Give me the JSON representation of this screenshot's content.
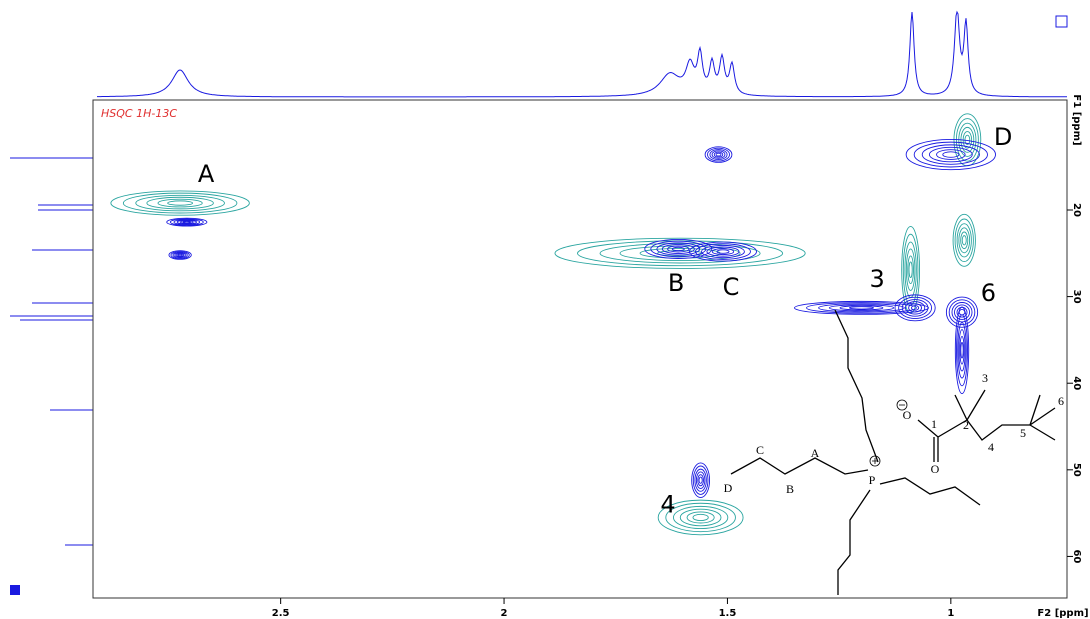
{
  "chart_data": {
    "type": "hsqc",
    "title": "HSQC 1H-13C",
    "x_label": "F2 [ppm]",
    "y_label": "F1 [ppm]",
    "xlim": [
      2.92,
      0.74
    ],
    "ylim": [
      7.3,
      64.8
    ],
    "xticks": [
      2.5,
      2.0,
      1.5,
      1.0
    ],
    "yticks": [
      20,
      30,
      40,
      50,
      60
    ],
    "colors": {
      "positive": "#2aa5a0",
      "negative": "#1a1ae0"
    },
    "peaks": [
      {
        "sign": "positive",
        "x": 2.725,
        "y": 19.2,
        "x_width": 0.31,
        "y_width": 2.8
      },
      {
        "sign": "negative",
        "x": 2.71,
        "y": 21.4,
        "x_width": 0.09,
        "y_width": 0.9
      },
      {
        "sign": "negative",
        "x": 2.725,
        "y": 25.2,
        "x_width": 0.05,
        "y_width": 1
      },
      {
        "sign": "positive",
        "x": 1.606,
        "y": 25.0,
        "x_width": 0.56,
        "y_width": 3.5
      },
      {
        "sign": "negative",
        "x": 1.61,
        "y": 24.5,
        "x_width": 0.15,
        "y_width": 2.2
      },
      {
        "sign": "negative",
        "x": 1.51,
        "y": 24.8,
        "x_width": 0.15,
        "y_width": 2.2
      },
      {
        "sign": "negative",
        "x": 1.52,
        "y": 13.6,
        "x_width": 0.06,
        "y_width": 1.8
      },
      {
        "sign": "positive",
        "x": 0.963,
        "y": 11.9,
        "x_width": 0.06,
        "y_width": 6
      },
      {
        "sign": "negative",
        "x": 1.0,
        "y": 13.6,
        "x_width": 0.2,
        "y_width": 3.5
      },
      {
        "sign": "positive",
        "x": 1.09,
        "y": 26.9,
        "x_width": 0.04,
        "y_width": 10
      },
      {
        "sign": "negative",
        "x": 1.2,
        "y": 31.3,
        "x_width": 0.3,
        "y_width": 1.5
      },
      {
        "sign": "negative",
        "x": 1.08,
        "y": 31.3,
        "x_width": 0.09,
        "y_width": 3
      },
      {
        "sign": "positive",
        "x": 0.97,
        "y": 23.5,
        "x_width": 0.05,
        "y_width": 6
      },
      {
        "sign": "negative",
        "x": 0.975,
        "y": 36.2,
        "x_width": 0.03,
        "y_width": 10
      },
      {
        "sign": "negative",
        "x": 0.975,
        "y": 31.8,
        "x_width": 0.07,
        "y_width": 3.5
      },
      {
        "sign": "negative",
        "x": 1.56,
        "y": 51.2,
        "x_width": 0.04,
        "y_width": 4
      },
      {
        "sign": "positive",
        "x": 1.56,
        "y": 55.5,
        "x_width": 0.19,
        "y_width": 4
      }
    ],
    "annotations": [
      {
        "text": "A",
        "x": 2.667,
        "y": 15.96
      },
      {
        "text": "B",
        "x": 1.615,
        "y": 28.55
      },
      {
        "text": "C",
        "x": 1.492,
        "y": 29.0
      },
      {
        "text": "D",
        "x": 0.883,
        "y": 11.7
      },
      {
        "text": "3",
        "x": 1.165,
        "y": 28.1
      },
      {
        "text": "6",
        "x": 0.916,
        "y": 29.7
      },
      {
        "text": "4",
        "x": 1.633,
        "y": 54.1
      }
    ],
    "structure_labels": [
      "C",
      "A",
      "D",
      "B",
      "P",
      "O",
      "1",
      "O",
      "2",
      "3",
      "4",
      "5",
      "6"
    ]
  }
}
